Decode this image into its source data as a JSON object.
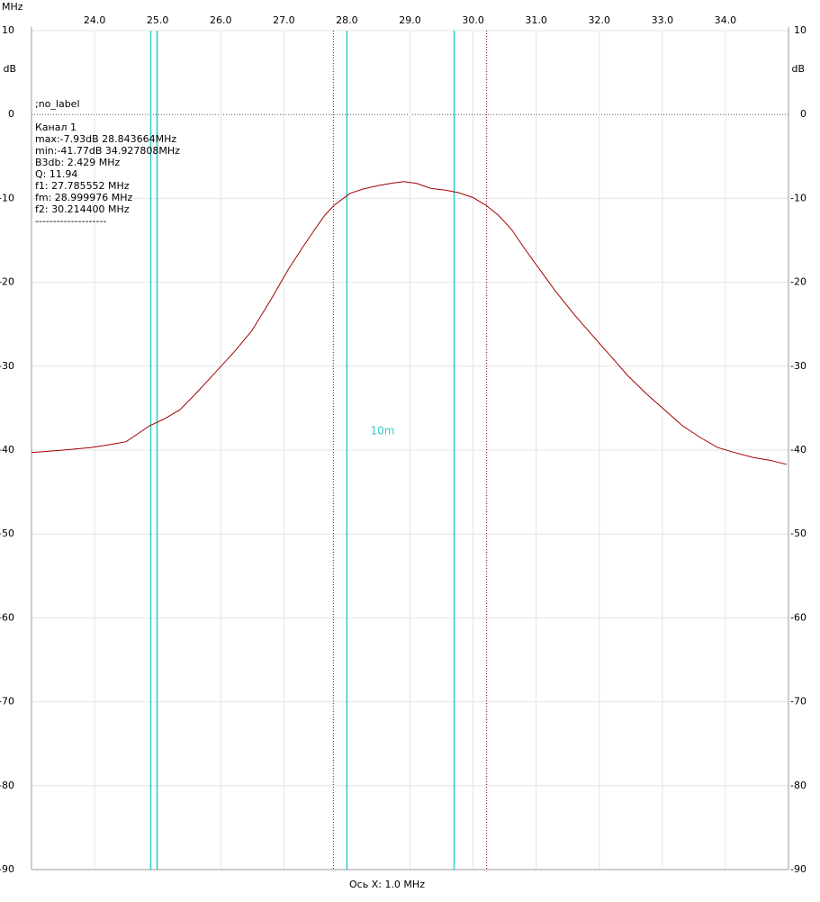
{
  "chart_data": {
    "type": "line",
    "x_unit": "MHz",
    "y_unit": "dB",
    "x_axis_label": "Ось X: 1.0 MHz",
    "note": ";no_label",
    "info": [
      "max:-7.93dB 28.843664MHz",
      "min:-41.77dB 34.927808MHz",
      "B3db: 2.429 MHz",
      "Q: 11.94",
      "f1: 27.785552 MHz",
      "fm: 28.999976 MHz",
      "f2: 30.214400 MHz",
      "--------------------"
    ],
    "x": [
      23.0,
      23.5,
      23.93,
      24.2,
      24.5,
      24.87,
      25.1,
      25.35,
      25.6,
      25.92,
      26.2,
      26.49,
      26.8,
      27.06,
      27.3,
      27.49,
      27.65,
      27.8,
      28.05,
      28.25,
      28.48,
      28.7,
      28.9,
      29.1,
      29.33,
      29.55,
      29.76,
      30.0,
      30.2,
      30.4,
      30.61,
      30.8,
      31.04,
      31.3,
      31.61,
      31.9,
      32.18,
      32.45,
      32.75,
      33.05,
      33.32,
      33.6,
      33.88,
      34.15,
      34.45,
      34.7,
      34.97
    ],
    "series": [
      {
        "name": "Канал 1",
        "color": "#a00000",
        "values": [
          -40.3,
          -40.0,
          -39.7,
          -39.4,
          -39.0,
          -37.1,
          -36.3,
          -35.2,
          -33.3,
          -30.7,
          -28.4,
          -25.8,
          -22.0,
          -18.6,
          -15.8,
          -13.7,
          -12.0,
          -10.8,
          -9.4,
          -8.9,
          -8.5,
          -8.2,
          -8.0,
          -8.2,
          -8.8,
          -9.0,
          -9.3,
          -9.9,
          -10.8,
          -12.0,
          -13.7,
          -15.8,
          -18.3,
          -21.0,
          -23.9,
          -26.4,
          -28.8,
          -31.1,
          -33.3,
          -35.3,
          -37.1,
          -38.5,
          -39.7,
          -40.3,
          -40.9,
          -41.2,
          -41.7
        ]
      }
    ],
    "xlim": [
      23.0,
      35.0
    ],
    "ylim": [
      -90,
      10
    ],
    "xticks": [
      {
        "value": 24,
        "label": "24.0"
      },
      {
        "value": 25,
        "label": "25.0"
      },
      {
        "value": 26,
        "label": "26.0"
      },
      {
        "value": 27,
        "label": "27.0"
      },
      {
        "value": 28,
        "label": "28.0"
      },
      {
        "value": 29,
        "label": "29.0"
      },
      {
        "value": 30,
        "label": "30.0"
      },
      {
        "value": 31,
        "label": "31.0"
      },
      {
        "value": 32,
        "label": "32.0"
      },
      {
        "value": 33,
        "label": "33.0"
      },
      {
        "value": 34,
        "label": "34.0"
      }
    ],
    "yticks": [
      10,
      0,
      -10,
      -20,
      -30,
      -40,
      -50,
      -60,
      -70,
      -80,
      -90
    ],
    "grid": true,
    "bands": [
      {
        "range": [
          24.89,
          24.99
        ],
        "color": "#33cccc"
      },
      {
        "name": "10m",
        "range": [
          28.0,
          29.7
        ],
        "color": "#33cccc"
      }
    ],
    "marker_lines": [
      27.785552,
      30.2144
    ],
    "marker_color": "#8b0000"
  }
}
